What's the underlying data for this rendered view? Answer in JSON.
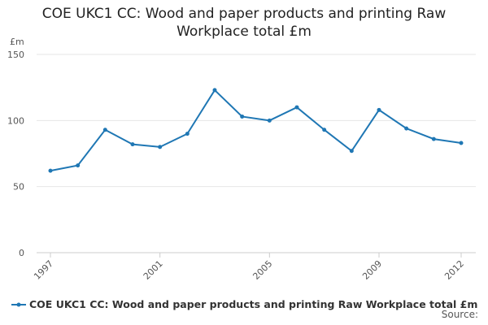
{
  "chart_data": {
    "type": "line",
    "title": "COE UKC1 CC: Wood and paper products and printing Raw Workplace total £m",
    "y_label": "£m",
    "source": "Source:",
    "x": [
      1997,
      1998,
      1999,
      2000,
      2001,
      2002,
      2003,
      2004,
      2005,
      2006,
      2007,
      2008,
      2009,
      2010,
      2011,
      2012
    ],
    "series": [
      {
        "name": "COE UKC1 CC: Wood and paper products and printing Raw Workplace total £m",
        "color": "#1f77b4",
        "values": [
          62,
          66,
          93,
          82,
          80,
          90,
          123,
          103,
          100,
          110,
          93,
          77,
          108,
          94,
          86,
          83
        ]
      }
    ],
    "xlim": [
      1997,
      2012
    ],
    "xticks": [
      1997,
      2001,
      2005,
      2009,
      2012
    ],
    "ylim": [
      0,
      150
    ],
    "yticks": [
      0,
      50,
      100,
      150
    ],
    "grid": true,
    "legend": "bottom"
  }
}
